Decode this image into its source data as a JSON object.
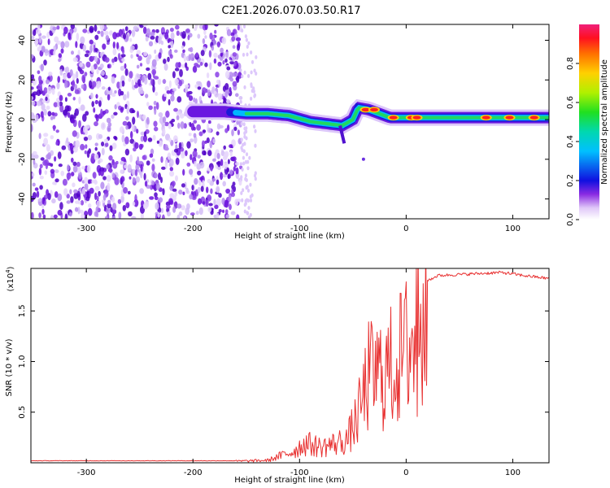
{
  "title": "C2E1.2026.070.03.50.R17",
  "chart_data": [
    {
      "type": "heatmap",
      "name": "spectrogram",
      "xlabel": "Height of straight line (km)",
      "ylabel": "Frequency (Hz)",
      "xlim": [
        -352,
        134
      ],
      "ylim": [
        -50,
        48
      ],
      "xticks": [
        -300,
        -200,
        -100,
        0,
        100
      ],
      "yticks": [
        -40,
        -20,
        0,
        20,
        40
      ],
      "colorbar": {
        "label": "Normalized spectral amplitude",
        "range": [
          0.0,
          1.0
        ],
        "ticks": [
          "0.0",
          "0.2",
          "0.4",
          "0.6",
          "0.8"
        ]
      },
      "noise_region": {
        "x_start": -352,
        "x_end": -155
      },
      "ridge": [
        {
          "x": -200,
          "f": 4
        },
        {
          "x": -170,
          "f": 4
        },
        {
          "x": -150,
          "f": 3
        },
        {
          "x": -130,
          "f": 3
        },
        {
          "x": -110,
          "f": 2
        },
        {
          "x": -90,
          "f": -1
        },
        {
          "x": -75,
          "f": -2
        },
        {
          "x": -60,
          "f": -3
        },
        {
          "x": -50,
          "f": 0
        },
        {
          "x": -45,
          "f": 6
        },
        {
          "x": -35,
          "f": 5
        },
        {
          "x": -25,
          "f": 3
        },
        {
          "x": -15,
          "f": 1
        },
        {
          "x": 0,
          "f": 1
        },
        {
          "x": 20,
          "f": 1
        },
        {
          "x": 60,
          "f": 1
        },
        {
          "x": 100,
          "f": 1
        },
        {
          "x": 134,
          "f": 1
        }
      ],
      "hotspots": [
        {
          "x": -38,
          "f": 5
        },
        {
          "x": -30,
          "f": 5
        },
        {
          "x": -12,
          "f": 1
        },
        {
          "x": 5,
          "f": 1
        },
        {
          "x": 10,
          "f": 1
        },
        {
          "x": 75,
          "f": 1
        },
        {
          "x": 97,
          "f": 1
        },
        {
          "x": 120,
          "f": 1
        }
      ]
    },
    {
      "type": "line",
      "name": "snr",
      "xlabel": "Height of straight line (km)",
      "ylabel": "SNR (10 * v/v)",
      "exponent_label": "(x10",
      "exponent": "4",
      "exponent_close": ")",
      "color": "#e83030",
      "xlim": [
        -352,
        134
      ],
      "ylim": [
        0,
        1.92
      ],
      "xticks": [
        -300,
        -200,
        -100,
        0,
        100
      ],
      "yticks": [
        "0.5",
        "1.0",
        "1.5"
      ],
      "envelope": [
        {
          "x": -352,
          "y": 0.02
        },
        {
          "x": -160,
          "y": 0.02
        },
        {
          "x": -130,
          "y": 0.03
        },
        {
          "x": -105,
          "y": 0.15
        },
        {
          "x": -95,
          "y": 0.25
        },
        {
          "x": -80,
          "y": 0.2
        },
        {
          "x": -65,
          "y": 0.25
        },
        {
          "x": -55,
          "y": 0.3
        },
        {
          "x": -45,
          "y": 0.6
        },
        {
          "x": -35,
          "y": 1.1
        },
        {
          "x": -20,
          "y": 1.15
        },
        {
          "x": -10,
          "y": 1.25
        },
        {
          "x": 0,
          "y": 1.45
        },
        {
          "x": 10,
          "y": 1.7
        },
        {
          "x": 20,
          "y": 1.8
        },
        {
          "x": 30,
          "y": 1.85
        },
        {
          "x": 70,
          "y": 1.87
        },
        {
          "x": 90,
          "y": 1.88
        },
        {
          "x": 110,
          "y": 1.85
        },
        {
          "x": 134,
          "y": 1.82
        }
      ]
    }
  ]
}
